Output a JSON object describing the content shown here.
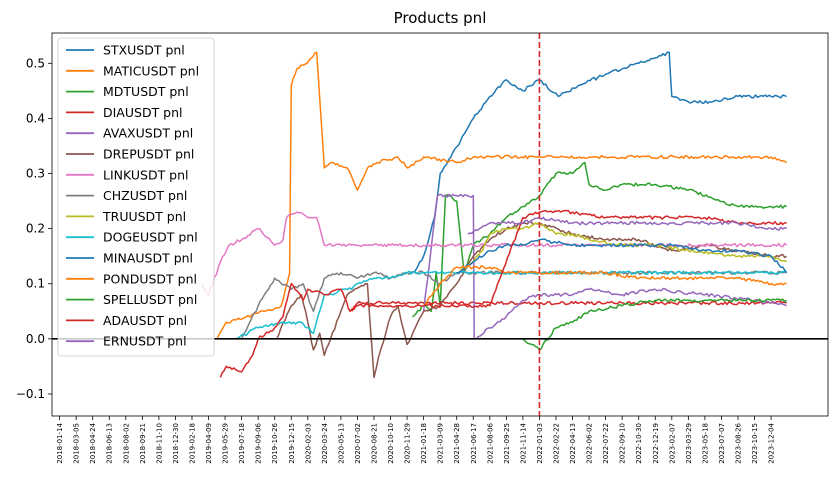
{
  "chart_data": {
    "type": "line",
    "title": "Products pnl",
    "xlabel": "",
    "ylabel": "",
    "ylim": [
      -0.14,
      0.555
    ],
    "yticks": [
      -0.1,
      0.0,
      0.1,
      0.2,
      0.3,
      0.4,
      0.5
    ],
    "ytick_labels": [
      "−0.1",
      "0.0",
      "0.1",
      "0.2",
      "0.3",
      "0.4",
      "0.5"
    ],
    "xlim": [
      "2017-12-22",
      "2024-05-24"
    ],
    "xticks": [
      "2018-01-14",
      "2018-03-05",
      "2018-04-24",
      "2018-06-13",
      "2018-08-02",
      "2018-09-21",
      "2018-11-10",
      "2018-12-30",
      "2019-02-18",
      "2019-04-09",
      "2019-05-29",
      "2019-07-18",
      "2019-09-06",
      "2019-10-26",
      "2019-12-15",
      "2020-02-03",
      "2020-03-24",
      "2020-05-13",
      "2020-07-02",
      "2020-08-21",
      "2020-10-10",
      "2020-11-29",
      "2021-01-18",
      "2021-03-09",
      "2021-04-28",
      "2021-06-17",
      "2021-08-06",
      "2021-09-25",
      "2021-11-14",
      "2022-01-03",
      "2022-02-22",
      "2022-04-13",
      "2022-06-02",
      "2022-07-22",
      "2022-09-10",
      "2022-10-30",
      "2022-12-19",
      "2023-02-07",
      "2023-03-29",
      "2023-05-18",
      "2023-07-07",
      "2023-08-26",
      "2023-10-15",
      "2023-12-04"
    ],
    "reference_lines": [
      {
        "orientation": "horizontal",
        "y": 0.0,
        "color": "#000000",
        "style": "solid"
      },
      {
        "orientation": "vertical",
        "x": "2022-01-03",
        "color": "#d62728",
        "style": "dashed"
      }
    ],
    "legend_position": "top-left",
    "grid": false,
    "series": [
      {
        "name": "STXUSDT pnl",
        "color": "#1f77b4",
        "x": [
          "2020-12-20",
          "2021-01-18",
          "2021-02-20",
          "2021-03-09",
          "2021-04-10",
          "2021-05-10",
          "2021-06-17",
          "2021-08-06",
          "2021-09-25",
          "2021-11-14",
          "2022-01-03",
          "2022-03-01",
          "2022-05-01",
          "2022-07-22",
          "2022-09-10",
          "2022-10-30",
          "2022-12-19",
          "2023-01-30",
          "2023-02-07",
          "2023-03-29",
          "2023-06-01",
          "2023-08-26",
          "2023-12-04",
          "2024-01-20"
        ],
        "values": [
          0.12,
          0.15,
          0.22,
          0.3,
          0.33,
          0.36,
          0.4,
          0.44,
          0.47,
          0.45,
          0.47,
          0.44,
          0.46,
          0.48,
          0.49,
          0.5,
          0.51,
          0.52,
          0.44,
          0.43,
          0.43,
          0.44,
          0.44,
          0.44
        ]
      },
      {
        "name": "MATICUSDT pnl",
        "color": "#ff7f0e",
        "x": [
          "2019-05-05",
          "2019-06-01",
          "2019-08-01",
          "2019-11-15",
          "2019-12-10",
          "2019-12-15",
          "2020-01-01",
          "2020-02-01",
          "2020-03-01",
          "2020-03-24",
          "2020-04-15",
          "2020-06-01",
          "2020-07-02",
          "2020-08-01",
          "2020-09-01",
          "2020-11-01",
          "2020-12-01",
          "2021-01-18",
          "2021-04-28",
          "2021-06-17",
          "2022-01-03",
          "2023-01-01",
          "2023-12-04",
          "2024-01-20"
        ],
        "values": [
          0.0,
          0.03,
          0.04,
          0.06,
          0.12,
          0.46,
          0.49,
          0.5,
          0.52,
          0.31,
          0.32,
          0.31,
          0.27,
          0.31,
          0.32,
          0.33,
          0.31,
          0.33,
          0.32,
          0.33,
          0.33,
          0.33,
          0.33,
          0.32
        ]
      },
      {
        "name": "MDTUSDT pnl",
        "color": "#2ca02c",
        "x": [
          "2020-12-15",
          "2021-01-18",
          "2021-02-10",
          "2021-02-25",
          "2021-03-09",
          "2021-03-25",
          "2021-04-10",
          "2021-04-28",
          "2021-05-20",
          "2021-06-17",
          "2021-08-06",
          "2021-09-25",
          "2021-11-14",
          "2022-01-03",
          "2022-02-22",
          "2022-04-13",
          "2022-05-20",
          "2022-06-02",
          "2022-07-22",
          "2022-09-10",
          "2022-12-19",
          "2023-03-29",
          "2023-08-26",
          "2023-12-04",
          "2024-01-20"
        ],
        "values": [
          0.04,
          0.06,
          0.05,
          0.12,
          0.06,
          0.26,
          0.26,
          0.25,
          0.12,
          0.17,
          0.19,
          0.22,
          0.24,
          0.26,
          0.3,
          0.3,
          0.32,
          0.28,
          0.27,
          0.28,
          0.28,
          0.27,
          0.24,
          0.24,
          0.24
        ]
      },
      {
        "name": "DIAUSDT pnl",
        "color": "#d62728",
        "x": [
          "2020-06-15",
          "2020-07-02",
          "2020-10-10",
          "2021-01-18",
          "2021-04-28",
          "2021-08-06",
          "2021-11-14",
          "2022-01-03",
          "2023-01-01",
          "2024-01-20"
        ],
        "values": [
          0.05,
          0.065,
          0.065,
          0.065,
          0.065,
          0.065,
          0.065,
          0.065,
          0.065,
          0.065
        ]
      },
      {
        "name": "AVAXUSDT pnl",
        "color": "#9467bd",
        "x": [
          "2021-01-18",
          "2021-03-01",
          "2021-04-28",
          "2021-06-17",
          "2021-06-20",
          "2021-08-06",
          "2021-09-25",
          "2021-11-14",
          "2022-01-03",
          "2022-04-13",
          "2022-06-02",
          "2022-09-10",
          "2022-12-19",
          "2023-05-18",
          "2023-10-15",
          "2024-01-20"
        ],
        "values": [
          0.05,
          0.26,
          0.26,
          0.26,
          0.0,
          0.02,
          0.04,
          0.07,
          0.08,
          0.08,
          0.09,
          0.08,
          0.09,
          0.08,
          0.07,
          0.06
        ]
      },
      {
        "name": "DREPUSDT pnl",
        "color": "#8c564b",
        "x": [
          "2019-11-01",
          "2019-12-15",
          "2020-01-15",
          "2020-02-03",
          "2020-02-20",
          "2020-03-10",
          "2020-03-24",
          "2020-05-13",
          "2020-06-01",
          "2020-08-01",
          "2020-08-21",
          "2020-09-10",
          "2020-10-10",
          "2020-11-01",
          "2020-11-29",
          "2021-01-18",
          "2021-03-09",
          "2021-04-28",
          "2021-06-17",
          "2021-08-06",
          "2021-09-25",
          "2021-11-14",
          "2022-01-03",
          "2022-04-13",
          "2022-07-22",
          "2022-10-30",
          "2023-02-07",
          "2023-05-18",
          "2023-08-26",
          "2023-12-04",
          "2024-01-20"
        ],
        "values": [
          0.0,
          0.06,
          0.08,
          0.03,
          -0.02,
          0.01,
          -0.03,
          0.05,
          0.08,
          0.1,
          -0.07,
          -0.02,
          0.04,
          0.06,
          -0.01,
          0.05,
          0.06,
          0.1,
          0.15,
          0.18,
          0.2,
          0.21,
          0.21,
          0.19,
          0.18,
          0.18,
          0.16,
          0.17,
          0.16,
          0.15,
          0.15
        ]
      },
      {
        "name": "LINKUSDT pnl",
        "color": "#e377c2",
        "x": [
          "2019-03-20",
          "2019-04-09",
          "2019-05-15",
          "2019-06-10",
          "2019-07-18",
          "2019-09-06",
          "2019-10-26",
          "2019-11-20",
          "2019-12-01",
          "2020-01-01",
          "2020-02-03",
          "2020-03-01",
          "2020-03-24",
          "2020-07-02",
          "2020-10-10",
          "2021-01-18",
          "2021-06-17",
          "2022-01-03",
          "2023-01-01",
          "2024-01-20"
        ],
        "values": [
          0.1,
          0.08,
          0.14,
          0.17,
          0.18,
          0.2,
          0.17,
          0.18,
          0.22,
          0.23,
          0.22,
          0.22,
          0.17,
          0.17,
          0.17,
          0.17,
          0.17,
          0.17,
          0.17,
          0.17
        ]
      },
      {
        "name": "CHZUSDT pnl",
        "color": "#7f7f7f",
        "x": [
          "2019-07-18",
          "2019-09-06",
          "2019-10-26",
          "2019-12-15",
          "2020-01-20",
          "2020-02-20",
          "2020-03-24",
          "2020-05-13",
          "2020-07-02",
          "2020-08-21",
          "2020-10-10",
          "2020-11-29",
          "2021-01-18",
          "2021-03-09",
          "2021-04-28",
          "2021-06-17",
          "2021-08-06",
          "2022-01-03",
          "2023-01-01",
          "2024-01-20"
        ],
        "values": [
          0.0,
          0.06,
          0.11,
          0.09,
          0.1,
          0.05,
          0.11,
          0.12,
          0.11,
          0.12,
          0.11,
          0.12,
          0.12,
          0.1,
          0.12,
          0.12,
          0.12,
          0.12,
          0.12,
          0.12
        ]
      },
      {
        "name": "TRUUSDT pnl",
        "color": "#bcbd22",
        "x": [
          "2021-05-01",
          "2021-06-17",
          "2021-07-15",
          "2021-08-06",
          "2021-09-25",
          "2021-11-14",
          "2022-01-03",
          "2022-02-22",
          "2022-04-13",
          "2022-06-02",
          "2022-09-10",
          "2022-12-19",
          "2023-03-29",
          "2023-08-26",
          "2023-12-04",
          "2024-01-20"
        ],
        "values": [
          0.12,
          0.14,
          0.16,
          0.19,
          0.2,
          0.2,
          0.21,
          0.19,
          0.19,
          0.18,
          0.17,
          0.17,
          0.16,
          0.15,
          0.15,
          0.14
        ]
      },
      {
        "name": "DOGEUSDT pnl",
        "color": "#17becf",
        "x": [
          "2019-07-01",
          "2019-09-06",
          "2019-11-15",
          "2020-01-15",
          "2020-02-20",
          "2020-03-24",
          "2020-04-20",
          "2020-05-13",
          "2020-06-15",
          "2020-07-02",
          "2020-08-21",
          "2020-10-10",
          "2020-11-29",
          "2021-01-18",
          "2021-03-09",
          "2022-01-03",
          "2023-01-01",
          "2024-01-20"
        ],
        "values": [
          0.0,
          0.02,
          0.03,
          0.03,
          0.01,
          0.08,
          0.08,
          0.09,
          0.09,
          0.1,
          0.11,
          0.11,
          0.12,
          0.12,
          0.12,
          0.12,
          0.12,
          0.12
        ]
      },
      {
        "name": "MINAUSDT pnl",
        "color": "#1f77b4",
        "x": [
          "2021-04-28",
          "2021-06-17",
          "2021-08-06",
          "2021-09-25",
          "2021-11-14",
          "2022-01-03",
          "2022-04-13",
          "2022-07-22",
          "2022-10-30",
          "2023-02-07",
          "2023-05-18",
          "2023-08-26",
          "2023-12-04",
          "2024-01-20"
        ],
        "values": [
          0.12,
          0.14,
          0.16,
          0.17,
          0.17,
          0.18,
          0.17,
          0.17,
          0.17,
          0.17,
          0.16,
          0.16,
          0.15,
          0.12
        ]
      },
      {
        "name": "PONDUSDT pnl",
        "color": "#ff7f0e",
        "x": [
          "2021-01-18",
          "2021-03-09",
          "2021-04-28",
          "2021-06-17",
          "2021-08-06",
          "2021-09-25",
          "2021-11-14",
          "2022-01-03",
          "2022-04-13",
          "2022-07-22",
          "2022-10-30",
          "2023-02-07",
          "2023-05-18",
          "2023-08-26",
          "2023-12-04",
          "2024-01-20"
        ],
        "values": [
          0.06,
          0.1,
          0.13,
          0.13,
          0.13,
          0.12,
          0.12,
          0.12,
          0.12,
          0.12,
          0.11,
          0.11,
          0.11,
          0.11,
          0.1,
          0.1
        ]
      },
      {
        "name": "SPELLUSDT pnl",
        "color": "#2ca02c",
        "x": [
          "2021-11-14",
          "2021-12-10",
          "2022-01-03",
          "2022-02-22",
          "2022-04-13",
          "2022-06-02",
          "2022-09-10",
          "2022-12-19",
          "2023-03-29",
          "2023-08-26",
          "2023-12-04",
          "2024-01-20"
        ],
        "values": [
          0.0,
          -0.01,
          -0.02,
          0.02,
          0.03,
          0.05,
          0.06,
          0.07,
          0.07,
          0.07,
          0.07,
          0.07
        ]
      },
      {
        "name": "ADAUSDT pnl",
        "color": "#d62728",
        "x": [
          "2019-05-15",
          "2019-06-01",
          "2019-07-18",
          "2019-08-20",
          "2019-09-06",
          "2019-10-26",
          "2019-11-20",
          "2019-12-15",
          "2020-01-20",
          "2020-02-03",
          "2020-03-24",
          "2020-05-13",
          "2020-06-10",
          "2020-07-02",
          "2020-08-21",
          "2020-10-10",
          "2021-01-18",
          "2021-08-06",
          "2021-11-14",
          "2022-01-03",
          "2022-04-13",
          "2022-07-22",
          "2022-10-30",
          "2023-02-07",
          "2023-05-18",
          "2023-08-26",
          "2023-12-04",
          "2024-01-20"
        ],
        "values": [
          -0.07,
          -0.05,
          -0.06,
          -0.03,
          0.0,
          0.02,
          0.04,
          0.1,
          0.07,
          0.09,
          0.08,
          0.09,
          0.05,
          0.06,
          0.06,
          0.06,
          0.06,
          0.06,
          0.22,
          0.23,
          0.23,
          0.22,
          0.22,
          0.22,
          0.22,
          0.21,
          0.21,
          0.21
        ]
      },
      {
        "name": "ERNUSDT pnl",
        "color": "#9467bd",
        "x": [
          "2021-06-01",
          "2021-08-06",
          "2021-09-25",
          "2021-11-14",
          "2022-01-03",
          "2022-04-13",
          "2022-07-22",
          "2022-10-30",
          "2023-02-07",
          "2023-05-18",
          "2023-08-26",
          "2023-12-04",
          "2024-01-20"
        ],
        "values": [
          0.19,
          0.21,
          0.21,
          0.21,
          0.22,
          0.21,
          0.21,
          0.21,
          0.21,
          0.21,
          0.21,
          0.2,
          0.2
        ]
      }
    ]
  }
}
